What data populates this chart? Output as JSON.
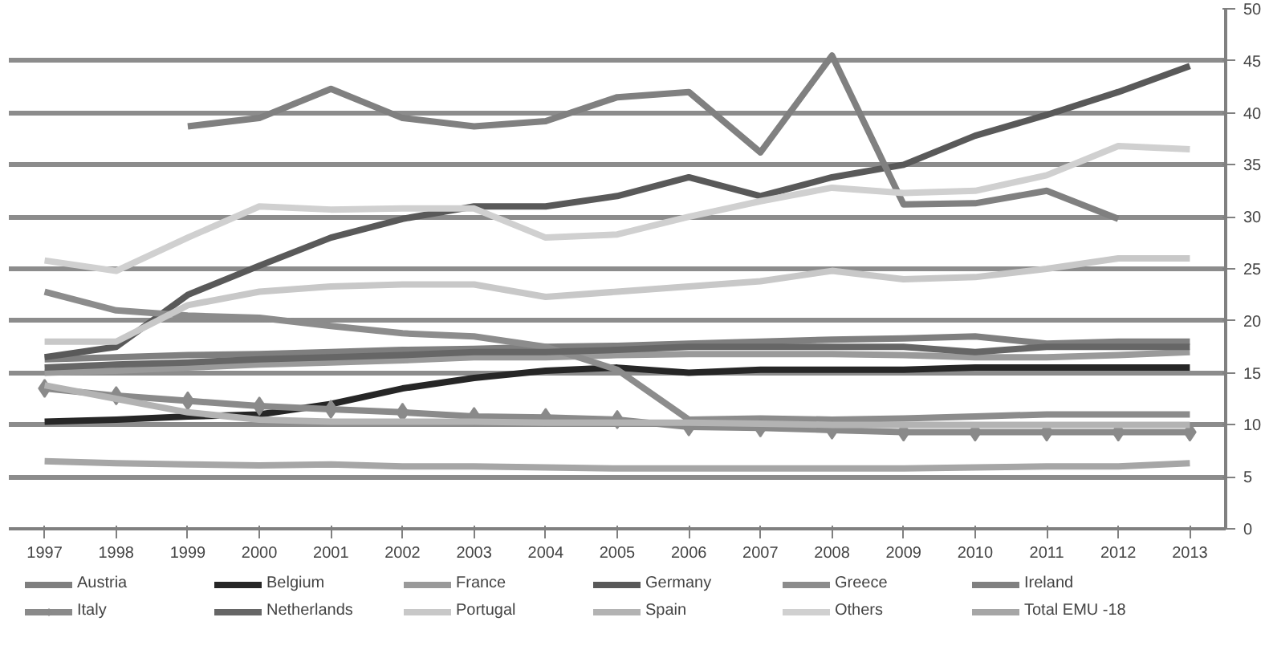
{
  "chart_data": {
    "type": "line",
    "categories": [
      "1997",
      "1998",
      "1999",
      "2000",
      "2001",
      "2002",
      "2003",
      "2004",
      "2005",
      "2006",
      "2007",
      "2008",
      "2009",
      "2010",
      "2011",
      "2012",
      "2013"
    ],
    "ylim": [
      0,
      50
    ],
    "yticks": [
      0,
      5,
      10,
      15,
      20,
      25,
      30,
      35,
      40,
      45,
      50
    ],
    "grid": "y",
    "legend": "bottom",
    "marker": "none",
    "line_style": "solid",
    "series": [
      {
        "name": "Austria",
        "color": "#7f7f7f",
        "values": [
          16.3,
          16.5,
          16.7,
          16.8,
          17.0,
          17.2,
          17.3,
          17.5,
          17.6,
          17.8,
          18.0,
          18.2,
          18.3,
          18.5,
          17.8,
          18.0,
          18.0
        ]
      },
      {
        "name": "Belgium",
        "color": "#262626",
        "values": [
          10.3,
          10.5,
          10.8,
          11.0,
          12.0,
          13.5,
          14.5,
          15.2,
          15.5,
          15.0,
          15.3,
          15.3,
          15.3,
          15.5,
          15.5,
          15.5,
          15.5
        ]
      },
      {
        "name": "France",
        "color": "#9a9a9a",
        "values": [
          15.0,
          15.2,
          15.5,
          15.8,
          16.0,
          16.2,
          16.5,
          16.5,
          16.7,
          16.8,
          16.8,
          16.8,
          16.7,
          16.5,
          16.5,
          16.7,
          17.0
        ]
      },
      {
        "name": "Germany",
        "color": "#595959",
        "values": [
          16.5,
          17.5,
          22.5,
          25.3,
          28.0,
          29.8,
          31.0,
          31.0,
          32.0,
          33.8,
          32.0,
          33.8,
          35.0,
          37.8,
          39.8,
          42.0,
          44.5
        ]
      },
      {
        "name": "Greece",
        "color": "#8c8c8c",
        "values": [
          22.8,
          21.0,
          20.5,
          20.3,
          19.5,
          18.8,
          18.5,
          17.5,
          15.3,
          10.5,
          10.6,
          10.5,
          10.6,
          10.8,
          11.0,
          11.0,
          11.0
        ]
      },
      {
        "name": "Ireland",
        "color": "#808080",
        "values": [
          null,
          null,
          38.7,
          39.5,
          42.3,
          39.5,
          38.7,
          39.2,
          41.5,
          42.0,
          36.2,
          45.5,
          31.2,
          31.3,
          32.5,
          29.8,
          null
        ]
      },
      {
        "name": "Italy",
        "color": "#8a8a8a",
        "marker": "diamond",
        "values": [
          13.5,
          12.8,
          12.3,
          11.8,
          11.5,
          11.2,
          10.8,
          10.7,
          10.5,
          9.8,
          9.7,
          9.5,
          9.3,
          9.3,
          9.3,
          9.3,
          9.3
        ]
      },
      {
        "name": "Netherlands",
        "color": "#666666",
        "values": [
          15.5,
          15.8,
          16.0,
          16.3,
          16.5,
          16.7,
          17.0,
          17.0,
          17.2,
          17.5,
          17.5,
          17.5,
          17.5,
          17.0,
          17.5,
          17.5,
          17.5
        ]
      },
      {
        "name": "Portugal",
        "color": "#c8c8c8",
        "values": [
          18.0,
          18.0,
          21.5,
          22.8,
          23.3,
          23.5,
          23.5,
          22.3,
          22.8,
          23.3,
          23.8,
          24.8,
          24.0,
          24.2,
          25.0,
          26.0,
          26.0
        ]
      },
      {
        "name": "Spain",
        "color": "#b3b3b3",
        "values": [
          13.8,
          12.5,
          11.2,
          10.5,
          10.3,
          10.3,
          10.3,
          10.2,
          10.2,
          10.2,
          10.1,
          10.0,
          10.0,
          10.0,
          10.0,
          10.0,
          10.0
        ]
      },
      {
        "name": "Others",
        "color": "#d0d0d0",
        "values": [
          25.8,
          24.8,
          28.0,
          31.0,
          30.7,
          30.8,
          30.8,
          28.0,
          28.3,
          30.0,
          31.5,
          32.8,
          32.3,
          32.5,
          34.0,
          36.8,
          36.5
        ]
      },
      {
        "name": "Total EMU -18",
        "color": "#a6a6a6",
        "values": [
          6.5,
          6.3,
          6.2,
          6.1,
          6.2,
          6.0,
          6.0,
          5.9,
          5.8,
          5.8,
          5.8,
          5.8,
          5.8,
          5.9,
          6.0,
          6.0,
          6.3
        ]
      }
    ]
  }
}
